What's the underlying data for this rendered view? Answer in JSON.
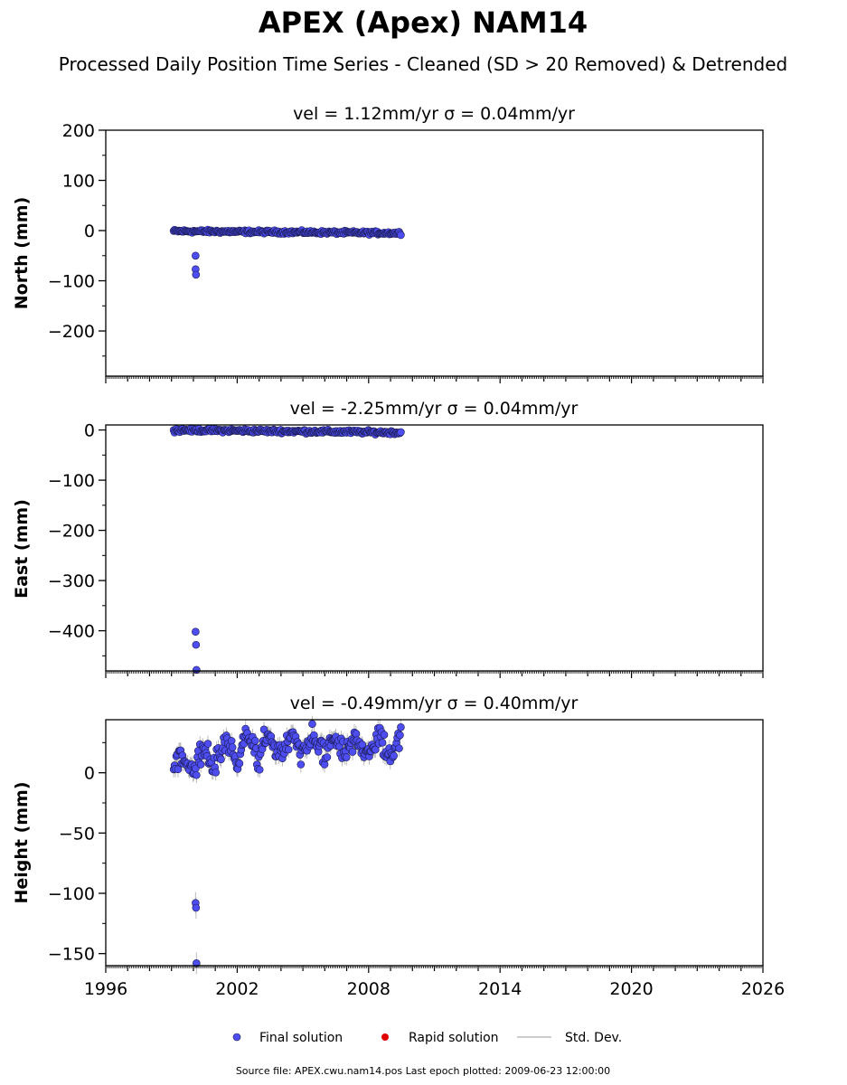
{
  "figure": {
    "title": "APEX (Apex) NAM14",
    "subtitle": "Processed Daily Position Time Series - Cleaned (SD > 20 Removed) & Detrended",
    "source": "Source file: APEX.cwu.nam14.pos  Last epoch plotted: 2009-06-23 12:00:00"
  },
  "legend": {
    "final": "Final solution",
    "rapid": "Rapid solution",
    "std": "Std. Dev."
  },
  "colors": {
    "final": "#4d4df2",
    "final_edge": "#1a1a4d",
    "rapid": "#e00000",
    "std": "#bbbbbb"
  },
  "chart_data": [
    {
      "type": "scatter",
      "title": "vel = 1.12mm/yr   σ = 0.04mm/yr",
      "ylabel": "North (mm)",
      "xlim": [
        1996,
        2026
      ],
      "ylim": [
        -290,
        200
      ],
      "yticks": [
        200,
        100,
        0,
        -100,
        -200
      ],
      "ytick_labels": [
        "200",
        "100",
        "0",
        "−100",
        "−200"
      ],
      "series_range": {
        "start": 1999.1,
        "end": 2009.47
      },
      "trend": {
        "start_value": -1,
        "end_value": -5,
        "noise": 2.2
      },
      "outliers": [
        {
          "x": 2000.1,
          "y": -50
        },
        {
          "x": 2000.1,
          "y": -77
        },
        {
          "x": 2000.12,
          "y": -88
        }
      ]
    },
    {
      "type": "scatter",
      "title": "vel = -2.25mm/yr   σ = 0.04mm/yr",
      "ylabel": "East (mm)",
      "xlim": [
        1996,
        2026
      ],
      "ylim": [
        -480,
        10
      ],
      "yticks": [
        0,
        -100,
        -200,
        -300,
        -400
      ],
      "ytick_labels": [
        "0",
        "−100",
        "−200",
        "−300",
        "−400"
      ],
      "series_range": {
        "start": 1999.1,
        "end": 2009.47
      },
      "trend": {
        "start_value": 0,
        "end_value": -5,
        "noise": 2.5
      },
      "outliers": [
        {
          "x": 2000.1,
          "y": -402
        },
        {
          "x": 2000.12,
          "y": -428
        },
        {
          "x": 2000.14,
          "y": -478
        }
      ]
    },
    {
      "type": "scatter",
      "title": "vel = -0.49mm/yr   σ = 0.40mm/yr",
      "ylabel": "Height (mm)",
      "xlim": [
        1996,
        2026
      ],
      "ylim": [
        -160,
        44
      ],
      "yticks": [
        0,
        -50,
        -100,
        -150
      ],
      "ytick_labels": [
        "0",
        "−50",
        "−100",
        "−150"
      ],
      "xticks": [
        1996,
        2002,
        2008,
        2014,
        2020,
        2026
      ],
      "xtick_labels": [
        "1996",
        "2002",
        "2008",
        "2014",
        "2020",
        "2026"
      ],
      "series_range": {
        "start": 1999.1,
        "end": 2009.47
      },
      "trend": {
        "start_value": 5,
        "end_value": 22,
        "noise": 7,
        "seasonal_amplitude": 8
      },
      "outliers": [
        {
          "x": 2000.1,
          "y": -108
        },
        {
          "x": 2000.12,
          "y": -112
        },
        {
          "x": 2000.14,
          "y": -158
        }
      ]
    }
  ]
}
